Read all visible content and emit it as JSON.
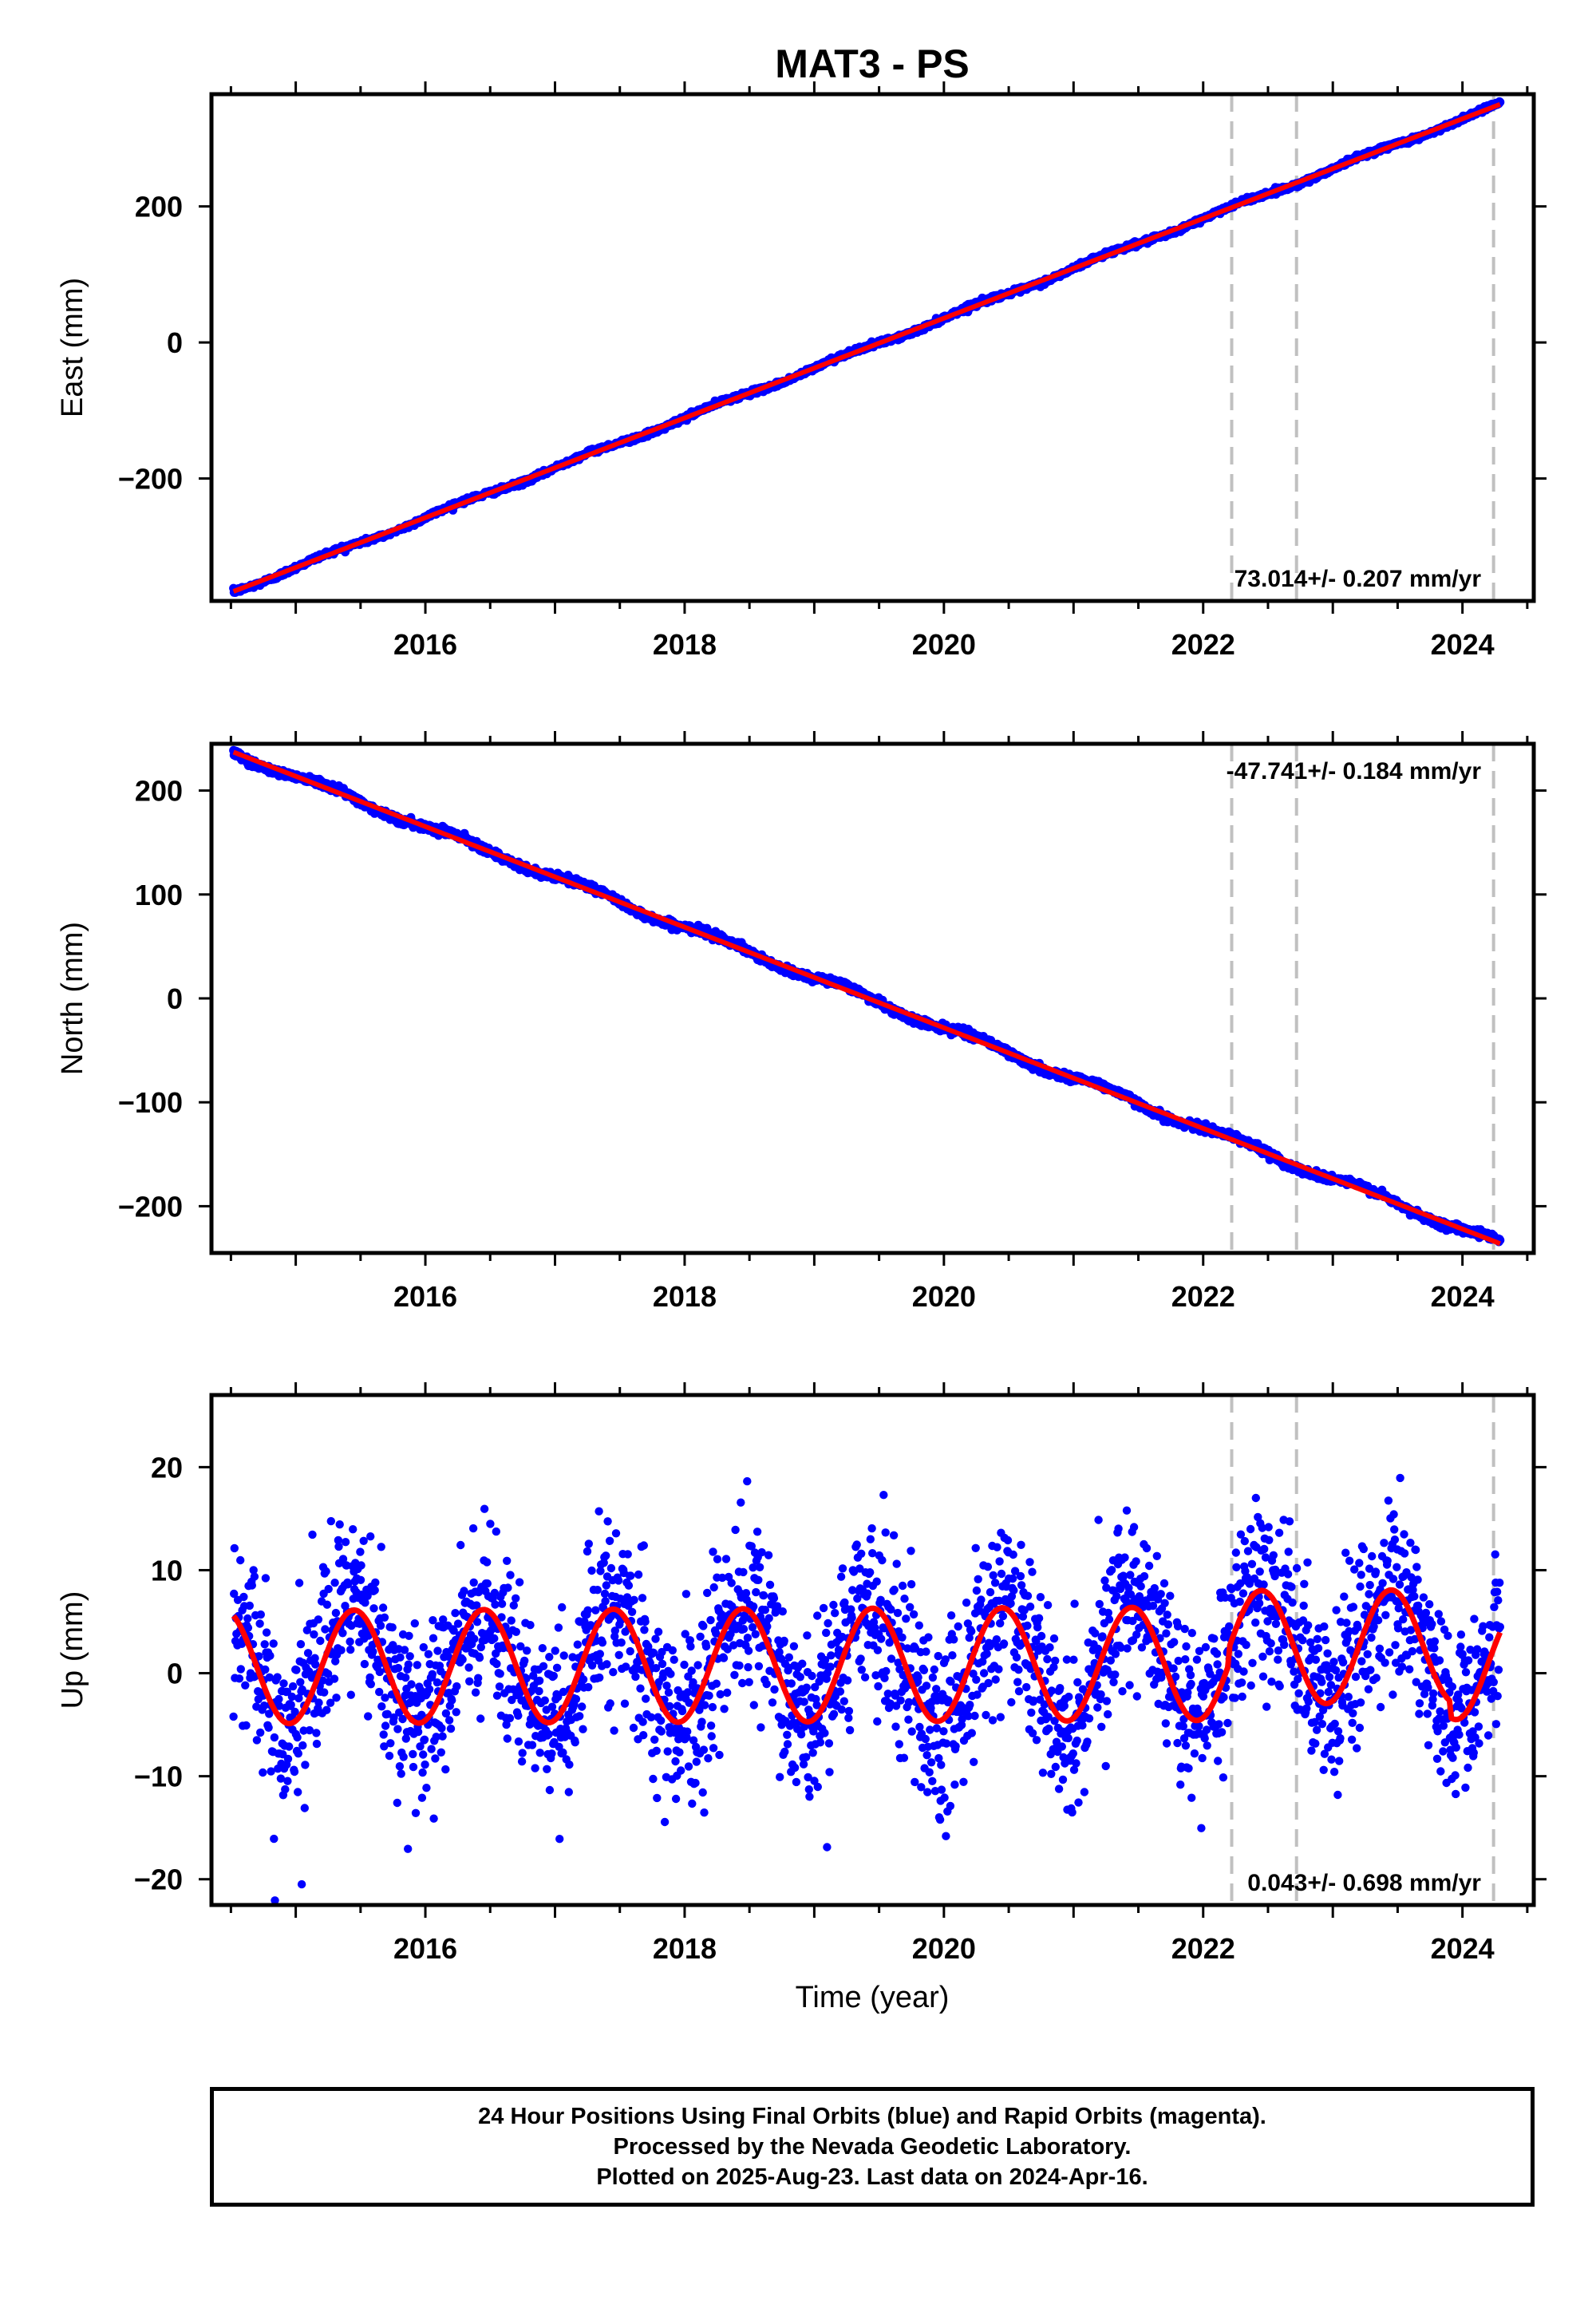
{
  "title": "MAT3 - PS",
  "xlabel": "Time (year)",
  "colors": {
    "final_orbits": "#0000ff",
    "fit_line": "#ff0000",
    "frame": "#000000",
    "steps": "#c0c0c0"
  },
  "caption": {
    "line1": "24 Hour Positions Using Final Orbits (blue) and Rapid Orbits (magenta).",
    "line2": "Processed by the Nevada Geodetic Laboratory.",
    "line3": "Plotted on 2025-Aug-23. Last data on 2024-Apr-16."
  },
  "chart_data": [
    {
      "type": "scatter",
      "ylabel": "East (mm)",
      "xlim": [
        2014.35,
        2024.55
      ],
      "ylim": [
        -380,
        365
      ],
      "yticks": [
        -200,
        0,
        200
      ],
      "xticks": [
        2016,
        2018,
        2020,
        2022,
        2024
      ],
      "rate_label": "73.014+/- 0.207 mm/yr",
      "rate_position": "bottom-right",
      "step_lines_x": [
        2022.22,
        2022.72,
        2024.24
      ],
      "data_range": [
        2014.52,
        2024.29
      ],
      "model": {
        "kind": "linear",
        "rate_mm_per_yr": 73.014,
        "t0": 2019.4,
        "offset": 0
      },
      "series": [
        {
          "values_at_start_end": [
            -366,
            350
          ]
        }
      ],
      "grid": false
    },
    {
      "type": "scatter",
      "ylabel": "North (mm)",
      "xlim": [
        2014.35,
        2024.55
      ],
      "ylim": [
        -245,
        245
      ],
      "yticks": [
        -200,
        -100,
        0,
        100,
        200
      ],
      "xticks": [
        2016,
        2018,
        2020,
        2022,
        2024
      ],
      "rate_label": "-47.741+/- 0.184 mm/yr",
      "rate_position": "top-right",
      "step_lines_x": [
        2022.22,
        2022.72,
        2024.24
      ],
      "data_range": [
        2014.52,
        2024.29
      ],
      "model": {
        "kind": "linear",
        "rate_mm_per_yr": -47.741,
        "t0": 2019.4,
        "offset": 0
      },
      "series": [
        {
          "values_at_start_end": [
            237,
            -236
          ]
        }
      ],
      "grid": false
    },
    {
      "type": "scatter",
      "ylabel": "Up (mm)",
      "xlim": [
        2014.35,
        2024.55
      ],
      "ylim": [
        -22.5,
        27
      ],
      "yticks": [
        -20,
        -10,
        0,
        10,
        20
      ],
      "xticks": [
        2016,
        2018,
        2020,
        2022,
        2024
      ],
      "rate_label": "0.043+/- 0.698 mm/yr",
      "rate_position": "bottom-right",
      "step_lines_x": [
        2022.22,
        2022.72,
        2024.24
      ],
      "data_range": [
        2014.52,
        2024.29
      ],
      "model": {
        "kind": "seasonal",
        "rate_mm_per_yr": 0.043,
        "amplitude_mm": 5.5,
        "peak_phase_year": 0.45,
        "scatter_sd_mm": 4.2
      },
      "grid": false
    }
  ]
}
